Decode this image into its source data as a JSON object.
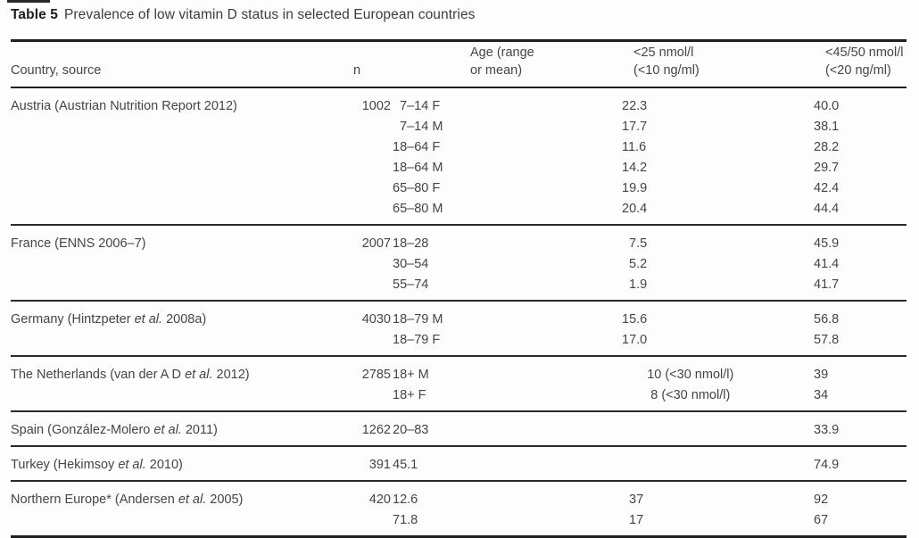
{
  "caption": {
    "label": "Table 5",
    "text": "Prevalence of low vitamin D status in selected European countries"
  },
  "colors": {
    "text": "#454545",
    "rule": "#1f1f1f",
    "background": "#fdfdfd"
  },
  "table": {
    "columns": {
      "country": "Country, source",
      "n": "n",
      "age_line1": "Age (range",
      "age_line2": "or mean)",
      "c25_line1": "<25 nmol/l",
      "c25_line2": "(<10 ng/ml)",
      "c4550_line1": "<45/50 nmol/l",
      "c4550_line2": "(<20 ng/ml)"
    },
    "groups": [
      {
        "country": {
          "pre": "Austria (Austrian Nutrition Report 2012)",
          "italic": "",
          "post": ""
        },
        "n": "1002",
        "rows": [
          {
            "age": "  7–14 F",
            "lt25": "22.3",
            "lt4550": "40.0"
          },
          {
            "age": "  7–14 M",
            "lt25": "17.7",
            "lt4550": "38.1"
          },
          {
            "age": "18–64 F",
            "lt25": "11.6",
            "lt4550": "28.2"
          },
          {
            "age": "18–64 M",
            "lt25": "14.2",
            "lt4550": "29.7"
          },
          {
            "age": "65–80 F",
            "lt25": "19.9",
            "lt4550": "42.4"
          },
          {
            "age": "65–80 M",
            "lt25": "20.4",
            "lt4550": "44.4"
          }
        ]
      },
      {
        "country": {
          "pre": "France (ENNS 2006–7)",
          "italic": "",
          "post": ""
        },
        "n": "2007",
        "rows": [
          {
            "age": "18–28",
            "lt25": "  7.5",
            "lt4550": "45.9"
          },
          {
            "age": "30–54",
            "lt25": "  5.2",
            "lt4550": "41.4"
          },
          {
            "age": "55–74",
            "lt25": "  1.9",
            "lt4550": "41.7"
          }
        ]
      },
      {
        "country": {
          "pre": "Germany (Hintzpeter ",
          "italic": "et al.",
          "post": " 2008a)"
        },
        "n": "4030",
        "rows": [
          {
            "age": "18–79 M",
            "lt25": "15.6",
            "lt4550": "56.8"
          },
          {
            "age": "18–79 F",
            "lt25": "17.0",
            "lt4550": "57.8"
          }
        ]
      },
      {
        "country": {
          "pre": "The Netherlands (van der A D ",
          "italic": "et al.",
          "post": " 2012)"
        },
        "n": "2785",
        "rows": [
          {
            "age": "18+ M",
            "lt25": "       10 (<30 nmol/l)",
            "lt4550": "39"
          },
          {
            "age": "18+ F",
            "lt25": "        8 (<30 nmol/l)",
            "lt4550": "34"
          }
        ]
      },
      {
        "country": {
          "pre": "Spain (González-Molero ",
          "italic": "et al.",
          "post": " 2011)"
        },
        "n": "1262",
        "rows": [
          {
            "age": "20–83",
            "lt25": "",
            "lt4550": "33.9"
          }
        ]
      },
      {
        "country": {
          "pre": "Turkey (Hekimsoy ",
          "italic": "et al.",
          "post": " 2010)"
        },
        "n": "391",
        "rows": [
          {
            "age": "45.1",
            "lt25": "",
            "lt4550": "74.9"
          }
        ]
      },
      {
        "country": {
          "pre": "Northern Europe* (Andersen ",
          "italic": "et al.",
          "post": " 2005)"
        },
        "n": "420",
        "rows": [
          {
            "age": "12.6",
            "lt25": "  37",
            "lt4550": "92"
          },
          {
            "age": "71.8",
            "lt25": "  17",
            "lt4550": "67"
          }
        ]
      }
    ]
  }
}
